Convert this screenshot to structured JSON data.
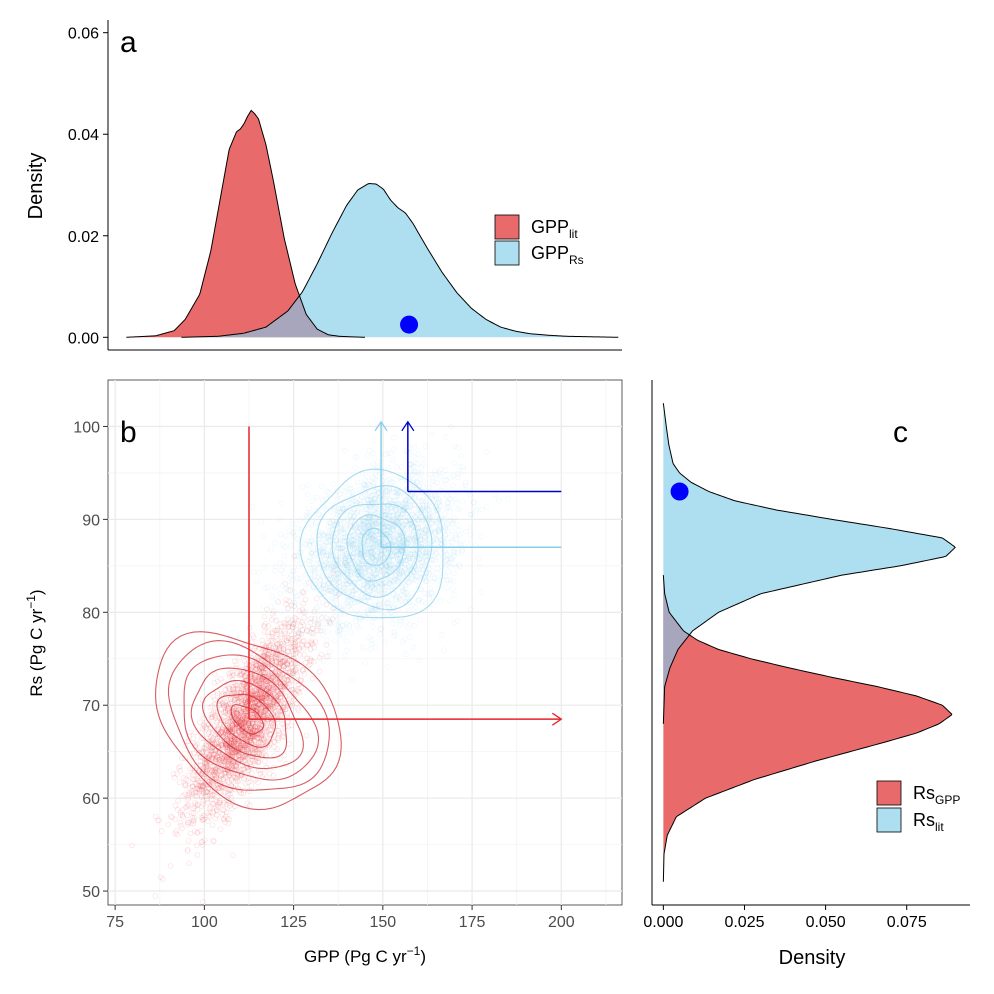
{
  "colors": {
    "red_fill": "#E96A6A",
    "blue_fill": "#AEDFF0",
    "overlap_fill": "#A7A6BD",
    "red_line": "#E8232A",
    "light_blue_line": "#87CEEB",
    "dark_blue_line": "#0000CC",
    "blue_dot": "#0000FF",
    "grid": "#EBEBEB"
  },
  "chart_data": [
    {
      "id": "a",
      "type": "area",
      "panel_label": "a",
      "ylabel": "Density",
      "xlim": [
        75,
        215
      ],
      "ylim": [
        -0.0025,
        0.0625
      ],
      "yticks": [
        0.0,
        0.02,
        0.04,
        0.06
      ],
      "ytick_labels": [
        "0.00",
        "0.02",
        "0.04",
        "0.06"
      ],
      "legend": {
        "position": "right",
        "entries": [
          {
            "base": "GPP",
            "sub": "lit",
            "color": "#E96A6A"
          },
          {
            "base": "GPP",
            "sub": "Rs",
            "color": "#AEDFF0"
          }
        ]
      },
      "series": [
        {
          "key": "GPP_lit",
          "x": [
            80,
            88,
            93,
            96,
            100,
            103,
            106,
            108,
            110,
            111,
            112,
            113,
            114,
            115,
            116,
            118,
            120,
            123,
            126,
            129,
            132,
            135,
            138,
            141,
            145
          ],
          "y": [
            0.0,
            0.0003,
            0.0013,
            0.0035,
            0.0085,
            0.017,
            0.029,
            0.037,
            0.0405,
            0.041,
            0.042,
            0.0435,
            0.0447,
            0.044,
            0.043,
            0.038,
            0.031,
            0.0195,
            0.0105,
            0.0045,
            0.0016,
            0.0005,
            0.0002,
            0.0001,
            0.0
          ]
        },
        {
          "key": "GPP_Rs",
          "x": [
            95,
            105,
            112,
            118,
            124,
            128,
            132,
            136,
            140,
            143,
            146,
            148,
            150,
            152,
            154,
            156,
            158,
            162,
            166,
            170,
            174,
            178,
            182,
            186,
            190,
            195,
            200,
            207,
            214
          ],
          "y": [
            0.0,
            0.0002,
            0.0008,
            0.002,
            0.0052,
            0.009,
            0.0145,
            0.0205,
            0.026,
            0.029,
            0.0303,
            0.0302,
            0.0292,
            0.027,
            0.0255,
            0.0245,
            0.0225,
            0.0175,
            0.0128,
            0.0088,
            0.0057,
            0.0035,
            0.002,
            0.0012,
            0.0007,
            0.0004,
            0.0002,
            0.0001,
            0.0
          ]
        }
      ],
      "observed_point": {
        "x": 157,
        "y": 0.0025
      }
    },
    {
      "id": "b",
      "type": "scatter",
      "panel_label": "b",
      "xlabel": {
        "base": "GPP (Pg C yr",
        "exp": "−1",
        "close": ")"
      },
      "ylabel": {
        "base": "Rs (Pg C yr",
        "exp": "−1",
        "close": ")"
      },
      "xlim": [
        73,
        217
      ],
      "ylim": [
        48.5,
        105
      ],
      "xticks": [
        75,
        100,
        125,
        150,
        175,
        200
      ],
      "yticks": [
        50,
        60,
        70,
        80,
        90,
        100
      ],
      "clouds": [
        {
          "key": "GPP_lit vs Rs_GPP",
          "center": [
            112,
            68.5
          ],
          "sd": [
            8,
            5
          ],
          "corr": 0.75,
          "n": 2600,
          "color": "#E8232A"
        },
        {
          "key": "GPP_Rs vs Rs_lit",
          "center": [
            149,
            87
          ],
          "sd": [
            11,
            4
          ],
          "corr": 0.3,
          "n": 2600,
          "color": "#87CEEB"
        }
      ],
      "contours": [
        {
          "center": [
            112,
            68.5
          ],
          "rx": [
            3,
            6,
            9,
            12,
            15,
            18,
            21
          ],
          "ry": [
            2,
            3.5,
            5,
            6.5,
            8,
            9.5,
            11
          ],
          "rot_deg": -52,
          "color": "#C8262E"
        },
        {
          "center": [
            148,
            87
          ],
          "rx": [
            4,
            8,
            12,
            16,
            20
          ],
          "ry": [
            2,
            3.5,
            5,
            6.5,
            8
          ],
          "rot_deg": -8,
          "color": "#87CEEB"
        }
      ],
      "guides": [
        {
          "color": "#E8232A",
          "vertical": {
            "x": 112.5,
            "from": 68.5,
            "to": 100
          },
          "horizontal": {
            "y": 68.5,
            "from": 112.5,
            "to": 200,
            "arrow": true
          }
        },
        {
          "color": "#87CEEB",
          "vertical": {
            "x": 149.5,
            "from": 87,
            "to": 100.5,
            "arrow": true
          },
          "horizontal": {
            "y": 87,
            "from": 149.5,
            "to": 200
          }
        },
        {
          "color": "#0000CC",
          "vertical": {
            "x": 157,
            "from": 93,
            "to": 100.5,
            "arrow": true
          },
          "horizontal": {
            "y": 93,
            "from": 157,
            "to": 200
          }
        }
      ]
    },
    {
      "id": "c",
      "type": "area",
      "panel_label": "c",
      "xlabel": "Density",
      "xlim": [
        -0.0035,
        0.0945
      ],
      "ylim": [
        48.5,
        105
      ],
      "xticks": [
        0.0,
        0.025,
        0.05,
        0.075
      ],
      "xtick_labels": [
        "0.000",
        "0.025",
        "0.050",
        "0.075"
      ],
      "legend": {
        "position": "bottom-right",
        "entries": [
          {
            "base": "Rs",
            "sub": "GPP",
            "color": "#E96A6A"
          },
          {
            "base": "Rs",
            "sub": "lit",
            "color": "#AEDFF0"
          }
        ]
      },
      "series": [
        {
          "key": "Rs_GPP",
          "y": [
            51,
            54,
            56,
            58,
            60,
            62,
            64,
            66,
            67,
            68,
            69,
            70,
            71,
            72,
            73,
            74,
            75,
            76,
            77,
            78,
            80,
            82,
            84
          ],
          "x": [
            0.0,
            0.0002,
            0.0012,
            0.004,
            0.013,
            0.028,
            0.047,
            0.068,
            0.078,
            0.085,
            0.089,
            0.086,
            0.078,
            0.066,
            0.052,
            0.039,
            0.027,
            0.017,
            0.0105,
            0.0062,
            0.0018,
            0.0004,
            0.0
          ]
        },
        {
          "key": "Rs_lit",
          "y": [
            68,
            72,
            74,
            76,
            78,
            80,
            82,
            84,
            85,
            86,
            87,
            88,
            89,
            90,
            91,
            92,
            93,
            94,
            95,
            96,
            98,
            100,
            102.5
          ],
          "x": [
            0.0,
            0.0004,
            0.002,
            0.0045,
            0.009,
            0.017,
            0.03,
            0.055,
            0.073,
            0.087,
            0.09,
            0.086,
            0.07,
            0.052,
            0.035,
            0.022,
            0.014,
            0.0085,
            0.005,
            0.003,
            0.0017,
            0.0009,
            0.0
          ]
        }
      ],
      "observed_point": {
        "x": 0.005,
        "y": 93
      }
    }
  ]
}
